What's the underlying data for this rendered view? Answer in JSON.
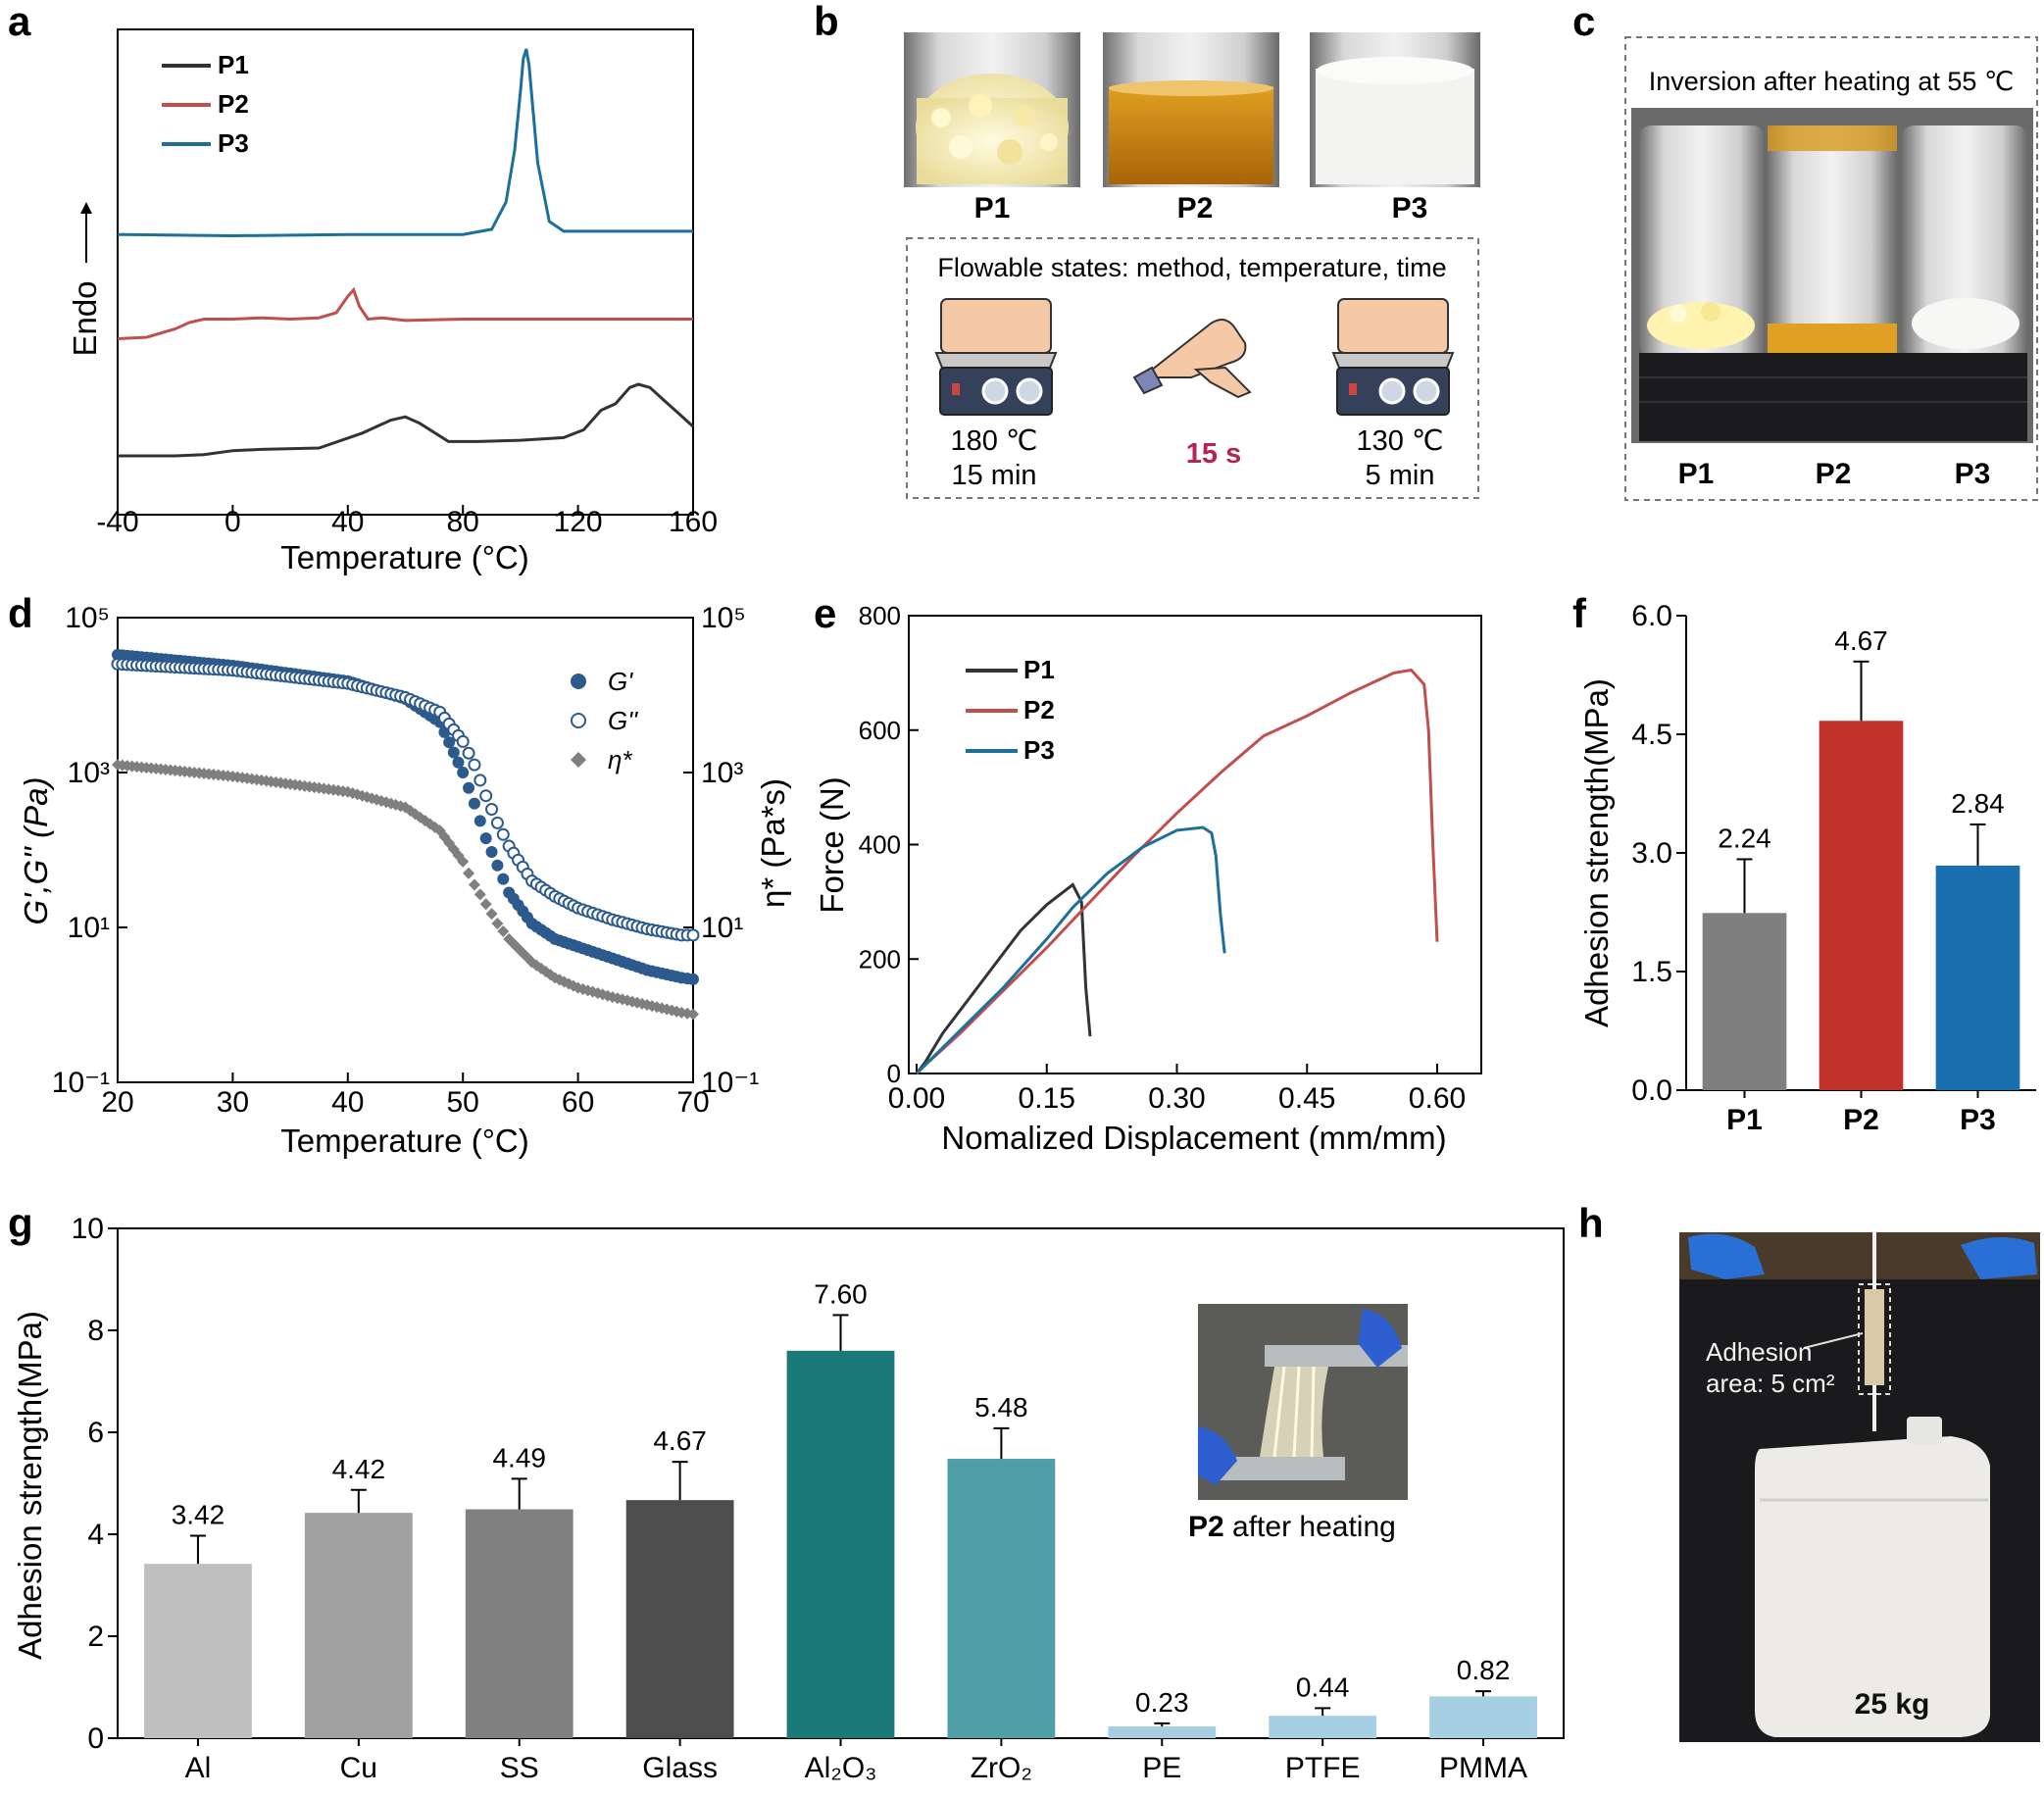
{
  "panels": {
    "a": "a",
    "b": "b",
    "c": "c",
    "d": "d",
    "e": "e",
    "f": "f",
    "g": "g",
    "h": "h"
  },
  "panel_b": {
    "samples": [
      "P1",
      "P2",
      "P3"
    ],
    "box_title": "Flowable states: method, temperature, time",
    "methods": [
      {
        "line1": "180 ℃",
        "line2": "15 min"
      },
      {
        "line1": "15 s",
        "line2": ""
      },
      {
        "line1": "130 ℃",
        "line2": "5 min"
      }
    ],
    "highlight_color": "#b5235a"
  },
  "panel_c": {
    "caption": "Inversion after heating at 55 ℃",
    "samples": [
      "P1",
      "P2",
      "P3"
    ]
  },
  "panel_g_inset": {
    "bold": "P2",
    "rest": " after heating"
  },
  "panel_h": {
    "annotation_line1": "Adhesion",
    "annotation_line2": "area: 5 cm²",
    "weight": "25 kg"
  },
  "chart_data": [
    {
      "id": "a",
      "type": "line",
      "xlabel": "Temperature (°C)",
      "ylabel": "Endo",
      "xlim": [
        -40,
        160
      ],
      "xticks": [
        -40,
        0,
        40,
        80,
        120,
        160
      ],
      "series": [
        {
          "name": "P1",
          "color": "#333333",
          "x": [
            -40,
            -20,
            -10,
            0,
            10,
            30,
            45,
            55,
            60,
            65,
            75,
            85,
            100,
            115,
            122,
            128,
            133,
            138,
            141,
            145,
            150,
            155,
            160
          ],
          "y": [
            0.0,
            0.0,
            0.02,
            0.08,
            0.1,
            0.12,
            0.35,
            0.55,
            0.6,
            0.5,
            0.22,
            0.22,
            0.24,
            0.28,
            0.4,
            0.7,
            0.8,
            1.05,
            1.1,
            1.05,
            0.85,
            0.65,
            0.45
          ]
        },
        {
          "name": "P2",
          "color": "#c0504d",
          "x": [
            -40,
            -30,
            -20,
            -15,
            -10,
            0,
            10,
            20,
            30,
            36,
            40,
            42,
            44,
            47,
            52,
            60,
            80,
            100,
            130,
            160
          ],
          "y": [
            1.8,
            1.82,
            1.95,
            2.05,
            2.1,
            2.1,
            2.12,
            2.1,
            2.12,
            2.2,
            2.45,
            2.55,
            2.3,
            2.1,
            2.12,
            2.08,
            2.1,
            2.1,
            2.1,
            2.1
          ]
        },
        {
          "name": "P3",
          "color": "#1f6f9c",
          "x": [
            -40,
            0,
            40,
            80,
            90,
            95,
            98,
            100,
            101,
            102,
            103,
            104,
            106,
            110,
            115,
            120,
            160
          ],
          "y": [
            3.4,
            3.38,
            3.4,
            3.4,
            3.48,
            3.9,
            4.7,
            5.6,
            6.1,
            6.25,
            6.0,
            5.5,
            4.5,
            3.6,
            3.45,
            3.45,
            3.45
          ]
        }
      ]
    },
    {
      "id": "d",
      "type": "scatter",
      "xlabel": "Temperature (°C)",
      "ylabel": "G',G'' (Pa)",
      "ylabel2": "η* (Pa*s)",
      "xlim": [
        20,
        70
      ],
      "xticks": [
        20,
        30,
        40,
        50,
        60,
        70
      ],
      "ylim_log": [
        -1,
        5
      ],
      "yticks_left": [
        "10⁻¹",
        "10¹",
        "10³",
        "10⁵"
      ],
      "yticks_right": [
        "10⁻¹",
        "10¹",
        "10³",
        "10⁵"
      ],
      "series": [
        {
          "name": "G'",
          "color": "#2c5a8c",
          "marker": "filled-circle",
          "x": [
            20,
            30,
            40,
            45,
            48,
            50,
            51,
            52,
            53,
            54,
            56,
            58,
            60,
            63,
            66,
            69,
            70
          ],
          "y": [
            4.52,
            4.38,
            4.18,
            3.95,
            3.65,
            3.0,
            2.6,
            2.15,
            1.8,
            1.45,
            1.05,
            0.85,
            0.75,
            0.6,
            0.45,
            0.35,
            0.33
          ]
        },
        {
          "name": "G''",
          "color": "#2c5a8c",
          "marker": "open-circle",
          "x": [
            20,
            30,
            40,
            45,
            48,
            50,
            51,
            52,
            53,
            54,
            56,
            58,
            60,
            63,
            66,
            69,
            70
          ],
          "y": [
            4.4,
            4.32,
            4.15,
            3.97,
            3.78,
            3.4,
            3.1,
            2.7,
            2.35,
            2.05,
            1.6,
            1.4,
            1.25,
            1.1,
            0.98,
            0.9,
            0.9
          ]
        },
        {
          "name": "η*",
          "color": "#7f7f7f",
          "marker": "diamond",
          "x": [
            20,
            30,
            40,
            45,
            48,
            50,
            51,
            52,
            53,
            54,
            56,
            58,
            60,
            63,
            66,
            69,
            70
          ],
          "y": [
            3.1,
            2.95,
            2.75,
            2.55,
            2.25,
            1.85,
            1.55,
            1.3,
            1.05,
            0.85,
            0.55,
            0.35,
            0.22,
            0.1,
            0.0,
            -0.1,
            -0.12
          ]
        }
      ]
    },
    {
      "id": "e",
      "type": "line",
      "xlabel": "Nomalized Displacement (mm/mm)",
      "ylabel": "Force (N)",
      "xlim": [
        0,
        0.6
      ],
      "ylim": [
        0,
        800
      ],
      "xticks": [
        "0.00",
        "0.15",
        "0.30",
        "0.45",
        "0.60"
      ],
      "yticks": [
        0,
        200,
        400,
        600,
        800
      ],
      "series": [
        {
          "name": "P1",
          "color": "#333333",
          "x": [
            0.0,
            0.01,
            0.03,
            0.06,
            0.09,
            0.12,
            0.15,
            0.18,
            0.19,
            0.195,
            0.2
          ],
          "y": [
            0,
            20,
            70,
            130,
            190,
            250,
            295,
            330,
            300,
            150,
            65
          ]
        },
        {
          "name": "P2",
          "color": "#c0504d",
          "x": [
            0.0,
            0.01,
            0.05,
            0.1,
            0.15,
            0.2,
            0.25,
            0.3,
            0.35,
            0.4,
            0.45,
            0.5,
            0.55,
            0.57,
            0.585,
            0.59,
            0.595,
            0.6
          ],
          "y": [
            0,
            15,
            70,
            145,
            220,
            300,
            380,
            455,
            525,
            590,
            625,
            665,
            700,
            705,
            680,
            600,
            400,
            230
          ]
        },
        {
          "name": "P3",
          "color": "#1f6f9c",
          "x": [
            0.0,
            0.01,
            0.05,
            0.1,
            0.15,
            0.18,
            0.22,
            0.26,
            0.3,
            0.33,
            0.34,
            0.345,
            0.35,
            0.355
          ],
          "y": [
            0,
            15,
            75,
            150,
            235,
            290,
            350,
            395,
            425,
            430,
            420,
            380,
            280,
            210
          ]
        }
      ]
    },
    {
      "id": "f",
      "type": "bar",
      "ylabel": "Adhesion strength(MPa)",
      "ylim": [
        0,
        6
      ],
      "yticks": [
        "0.0",
        "1.5",
        "3.0",
        "4.5",
        "6.0"
      ],
      "categories": [
        "P1",
        "P2",
        "P3"
      ],
      "values": [
        2.24,
        4.67,
        2.84
      ],
      "errors": [
        0.68,
        0.75,
        0.52
      ],
      "labels": [
        "2.24",
        "4.67",
        "2.84"
      ],
      "colors": [
        "#7f7f7f",
        "#c0322a",
        "#1a6fae"
      ]
    },
    {
      "id": "g",
      "type": "bar",
      "ylabel": "Adhesion strength(MPa)",
      "ylim": [
        0,
        10
      ],
      "yticks": [
        0,
        2,
        4,
        6,
        8,
        10
      ],
      "categories": [
        "Al",
        "Cu",
        "SS",
        "Glass",
        "Al₂O₃",
        "ZrO₂",
        "PE",
        "PTFE",
        "PMMA"
      ],
      "values": [
        3.42,
        4.42,
        4.49,
        4.67,
        7.6,
        5.48,
        0.23,
        0.44,
        0.82
      ],
      "errors": [
        0.55,
        0.45,
        0.6,
        0.75,
        0.7,
        0.6,
        0.06,
        0.15,
        0.1
      ],
      "labels": [
        "3.42",
        "4.42",
        "4.49",
        "4.67",
        "7.60",
        "5.48",
        "0.23",
        "0.44",
        "0.82"
      ],
      "colors": [
        "#bfbfbf",
        "#a0a0a0",
        "#808080",
        "#4d4d4d",
        "#1a7a78",
        "#4f9ea8",
        "#a6cfe3",
        "#a6cfe3",
        "#a6cfe3"
      ]
    }
  ]
}
